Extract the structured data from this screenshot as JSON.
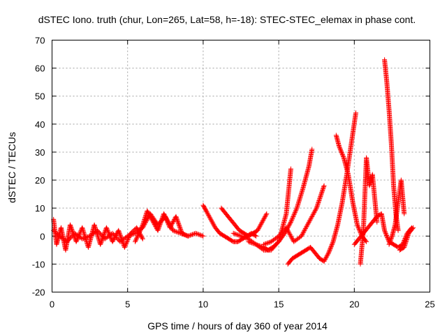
{
  "chart_data": {
    "type": "scatter",
    "title": "dSTEC Iono. truth (chur, Lon=265, Lat=58, h=-18): STEC-STEC_elemax in phase cont.",
    "xlabel": "GPS time / hours of day 360 of year 2014",
    "ylabel": "dSTEC  / TECUs",
    "xlim": [
      0,
      25
    ],
    "ylim": [
      -20,
      70
    ],
    "xticks": [
      0,
      5,
      10,
      15,
      20,
      25
    ],
    "yticks": [
      -20,
      -10,
      0,
      10,
      20,
      30,
      40,
      50,
      60,
      70
    ],
    "xtick_labels": [
      "0",
      "5",
      "10",
      "15",
      "20",
      "25"
    ],
    "ytick_labels": [
      "-20",
      "-10",
      "0",
      "10",
      "20",
      "30",
      "40",
      "50",
      "60",
      "70"
    ],
    "grid": true,
    "legend": "none",
    "marker": "+",
    "color": "#ff0000",
    "series": [
      {
        "x": [
          0.1,
          0.5,
          1.0,
          1.5,
          2.0,
          2.5,
          3.0,
          3.5,
          4.0,
          4.5,
          5.0,
          5.5,
          6.0,
          6.5,
          7.0,
          7.5,
          8.0,
          8.5,
          9.0,
          9.5,
          10.0
        ],
        "y": [
          2,
          0,
          -2,
          1,
          -1,
          0,
          2,
          -1,
          1,
          -2,
          0,
          1,
          3,
          8,
          4,
          7,
          2,
          1,
          0,
          1,
          0
        ]
      },
      {
        "x": [
          0.1,
          0.3,
          0.6,
          0.9,
          1.2,
          1.6,
          2.0,
          2.4,
          2.8,
          3.2,
          3.6,
          4.0,
          4.4,
          4.8,
          5.2,
          5.6,
          6.0
        ],
        "y": [
          6,
          -3,
          3,
          -5,
          4,
          -2,
          3,
          -4,
          4,
          -3,
          3,
          -2,
          2,
          -4,
          1,
          3,
          -1
        ]
      },
      {
        "x": [
          5.5,
          6.0,
          6.3,
          6.6,
          7.0,
          7.4,
          7.8,
          8.2,
          8.6,
          9.0
        ],
        "y": [
          -2,
          4,
          9,
          6,
          2,
          8,
          3,
          7,
          1,
          0
        ]
      },
      {
        "x": [
          10.0,
          10.2,
          10.5,
          10.8,
          11.1,
          11.4,
          11.7,
          12.0,
          12.3,
          12.6,
          12.9,
          13.2,
          13.5
        ],
        "y": [
          11,
          9,
          6,
          3,
          1,
          0,
          -1,
          -2,
          -2,
          -1,
          0,
          1,
          0
        ]
      },
      {
        "x": [
          11.2,
          11.5,
          11.8,
          12.1,
          12.4,
          12.7,
          13.0,
          13.3,
          13.6,
          13.9,
          14.2
        ],
        "y": [
          10,
          8,
          6,
          4,
          2,
          1,
          0,
          1,
          2,
          5,
          8
        ]
      },
      {
        "x": [
          12.0,
          12.5,
          13.0,
          13.5,
          14.0,
          14.5,
          15.0,
          15.5,
          15.8
        ],
        "y": [
          1,
          0,
          -1,
          -3,
          -5,
          -5,
          -2,
          8,
          24
        ]
      },
      {
        "x": [
          13.0,
          13.5,
          14.0,
          14.3,
          14.6,
          15.0,
          15.4,
          15.8,
          16.2,
          16.6,
          17.0,
          17.2
        ],
        "y": [
          -2,
          -3,
          -4,
          -5,
          -4,
          -2,
          1,
          5,
          10,
          17,
          25,
          31
        ]
      },
      {
        "x": [
          14.0,
          14.5,
          15.0,
          15.5,
          16.0,
          16.5,
          17.0,
          17.5,
          18.0
        ],
        "y": [
          -3,
          -2,
          0,
          3,
          -2,
          0,
          5,
          10,
          18
        ]
      },
      {
        "x": [
          15.6,
          15.9,
          16.2,
          16.5,
          16.8,
          17.1,
          17.4,
          17.7,
          18.0,
          18.3,
          18.6,
          18.9,
          19.2,
          19.5,
          19.8,
          20.1
        ],
        "y": [
          -10,
          -8,
          -7,
          -6,
          -5,
          -4,
          -6,
          -8,
          -9,
          -6,
          -2,
          4,
          12,
          22,
          33,
          44
        ]
      },
      {
        "x": [
          18.8,
          19.0,
          19.3,
          19.6,
          19.9,
          20.2,
          20.5,
          20.8
        ],
        "y": [
          36,
          32,
          28,
          22,
          12,
          4,
          0,
          -2
        ]
      },
      {
        "x": [
          20.0,
          20.3,
          20.6,
          20.9,
          21.2,
          21.5,
          21.8,
          22.0,
          22.3,
          22.6,
          22.9,
          23.2,
          23.5,
          23.8
        ],
        "y": [
          -3,
          -1,
          1,
          3,
          5,
          7,
          8,
          2,
          -2,
          -3,
          -4,
          -3,
          1,
          3
        ]
      },
      {
        "x": [
          20.4,
          20.6,
          20.8,
          21.0,
          21.2,
          21.5
        ],
        "y": [
          -10,
          2,
          28,
          18,
          22,
          5
        ]
      },
      {
        "x": [
          22.0,
          22.15,
          22.3,
          22.45,
          22.6,
          22.75,
          22.9
        ],
        "y": [
          63,
          55,
          45,
          33,
          18,
          8,
          2
        ]
      },
      {
        "x": [
          22.3,
          22.5,
          22.7,
          22.9,
          23.1,
          23.3
        ],
        "y": [
          -3,
          0,
          4,
          12,
          20,
          8
        ]
      },
      {
        "x": [
          23.0,
          23.3,
          23.6,
          23.9
        ],
        "y": [
          -5,
          -4,
          1,
          3
        ]
      }
    ]
  }
}
